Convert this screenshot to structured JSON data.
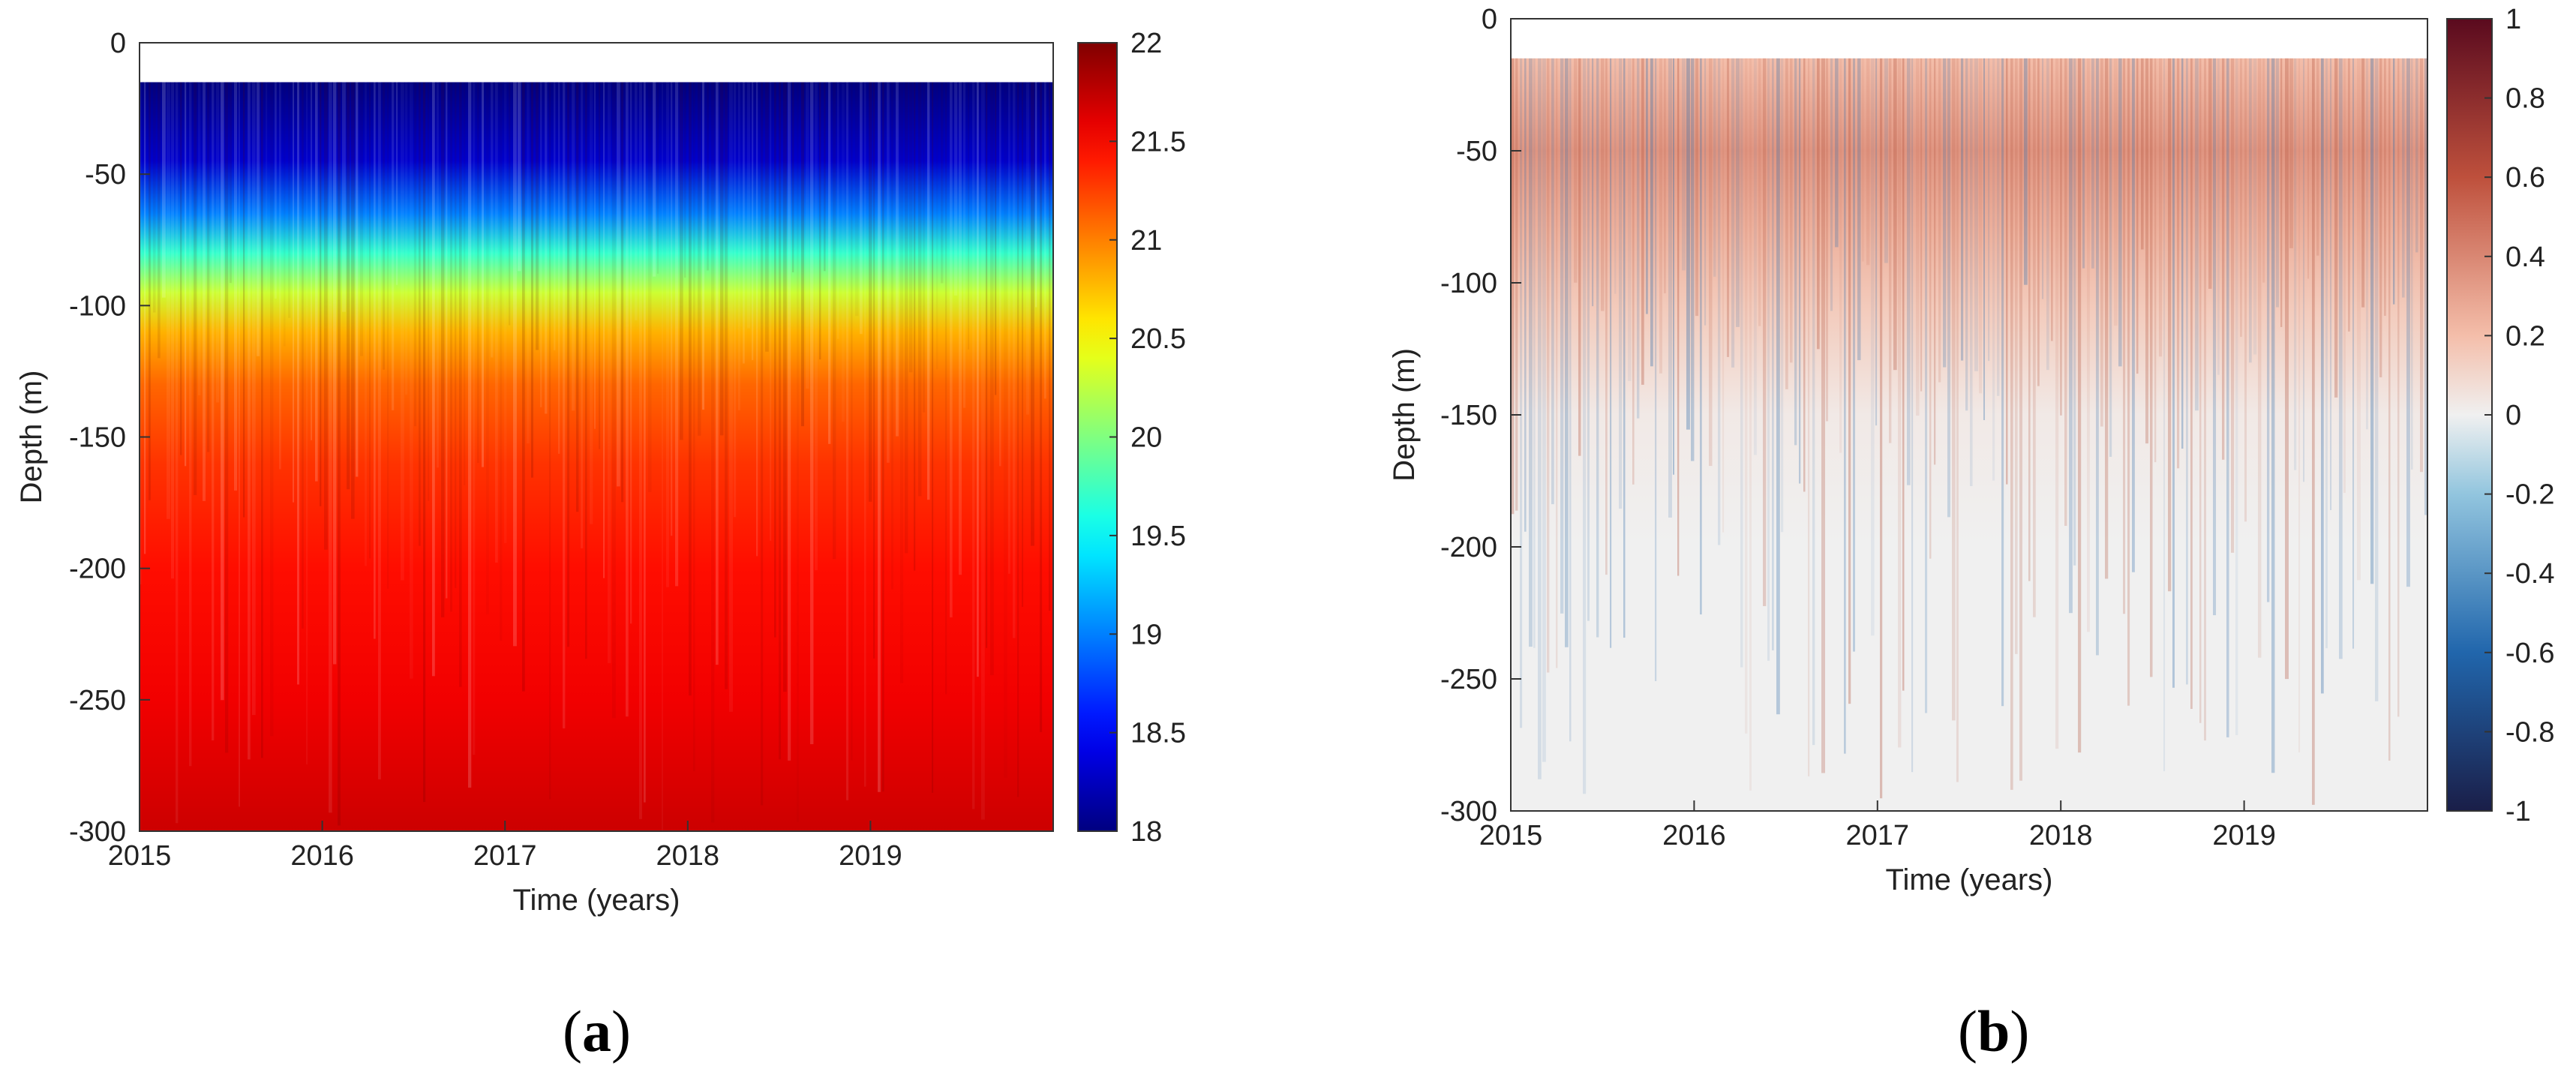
{
  "chart_data": [
    {
      "panel_label": "a",
      "type": "heatmap",
      "xlabel": "Time (years)",
      "ylabel": "Depth (m)",
      "x_ticks": [
        "2015",
        "2016",
        "2017",
        "2018",
        "2019"
      ],
      "y_ticks": [
        "0",
        "-50",
        "-100",
        "-150",
        "-200",
        "-250",
        "-300"
      ],
      "xlim": [
        2015,
        2020
      ],
      "ylim": [
        -300,
        0
      ],
      "data_top_depth": -15,
      "colormap": "jet",
      "colorbar": {
        "min": 18,
        "max": 22,
        "ticks": [
          "22",
          "21.5",
          "21",
          "20.5",
          "20",
          "19.5",
          "19",
          "18.5",
          "18"
        ]
      },
      "depth_profile": [
        {
          "depth": -15,
          "value": 18.0
        },
        {
          "depth": -45,
          "value": 18.3
        },
        {
          "depth": -65,
          "value": 19.0
        },
        {
          "depth": -80,
          "value": 19.7
        },
        {
          "depth": -95,
          "value": 20.3
        },
        {
          "depth": -110,
          "value": 20.8
        },
        {
          "depth": -130,
          "value": 21.1
        },
        {
          "depth": -160,
          "value": 21.3
        },
        {
          "depth": -200,
          "value": 21.45
        },
        {
          "depth": -250,
          "value": 21.55
        },
        {
          "depth": -300,
          "value": 21.7
        }
      ]
    },
    {
      "panel_label": "b",
      "type": "heatmap",
      "xlabel": "Time (years)",
      "ylabel": "Depth (m)",
      "x_ticks": [
        "2015",
        "2016",
        "2017",
        "2018",
        "2019"
      ],
      "y_ticks": [
        "0",
        "-50",
        "-100",
        "-150",
        "-200",
        "-250",
        "-300"
      ],
      "xlim": [
        2015,
        2020
      ],
      "ylim": [
        -300,
        0
      ],
      "data_top_depth": -15,
      "colormap": "diverging-blue-red",
      "colorbar": {
        "min": -1,
        "max": 1,
        "ticks": [
          "1",
          "0.8",
          "0.6",
          "0.4",
          "0.2",
          "0",
          "-0.2",
          "-0.4",
          "-0.6",
          "-0.8",
          "-1"
        ]
      },
      "depth_profile": [
        {
          "depth": -15,
          "value": 0.2
        },
        {
          "depth": -50,
          "value": 0.35
        },
        {
          "depth": -80,
          "value": 0.25
        },
        {
          "depth": -110,
          "value": 0.15
        },
        {
          "depth": -150,
          "value": 0.03
        },
        {
          "depth": -200,
          "value": 0.0
        },
        {
          "depth": -300,
          "value": 0.0
        }
      ]
    }
  ]
}
